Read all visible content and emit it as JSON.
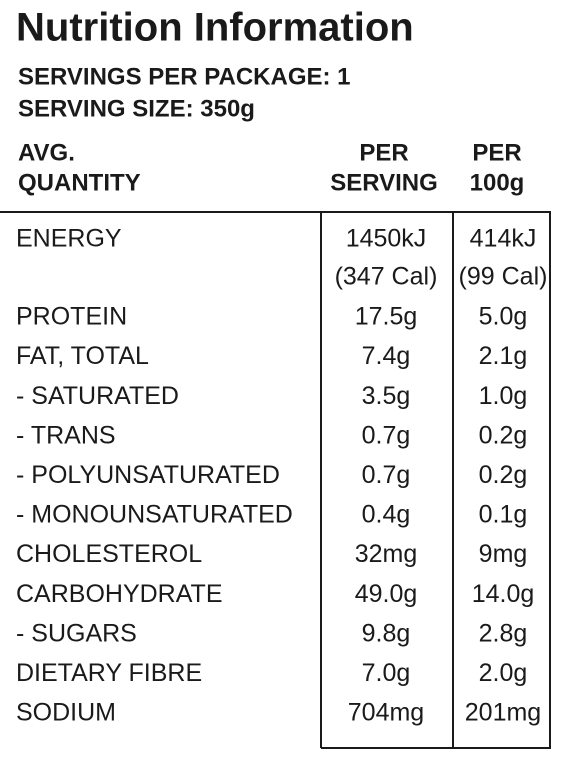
{
  "header": {
    "title": "Nutrition Information",
    "servings_per_package": "SERVINGS PER PACKAGE: 1",
    "serving_size": "SERVING SIZE: 350g"
  },
  "table": {
    "columns": [
      [
        "AVG.",
        "QUANTITY"
      ],
      [
        "PER",
        "SERVING"
      ],
      [
        "PER",
        "100g"
      ]
    ],
    "rows": [
      [
        "ENERGY",
        [
          "1450kJ",
          "(347 Cal)"
        ],
        [
          "414kJ",
          "(99 Cal)"
        ]
      ],
      [
        "PROTEIN",
        "17.5g",
        "5.0g"
      ],
      [
        "FAT, TOTAL",
        "7.4g",
        "2.1g"
      ],
      [
        "- SATURATED",
        "3.5g",
        "1.0g"
      ],
      [
        "- TRANS",
        "0.7g",
        "0.2g"
      ],
      [
        "- POLYUNSATURATED",
        "0.7g",
        "0.2g"
      ],
      [
        "- MONOUNSATURATED",
        "0.4g",
        "0.1g"
      ],
      [
        "CHOLESTEROL",
        "32mg",
        "9mg"
      ],
      [
        "CARBOHYDRATE",
        "49.0g",
        "14.0g"
      ],
      [
        "- SUGARS",
        "9.8g",
        "2.8g"
      ],
      [
        "DIETARY FIBRE",
        "7.0g",
        "2.0g"
      ],
      [
        "SODIUM",
        "704mg",
        "201mg"
      ]
    ]
  }
}
